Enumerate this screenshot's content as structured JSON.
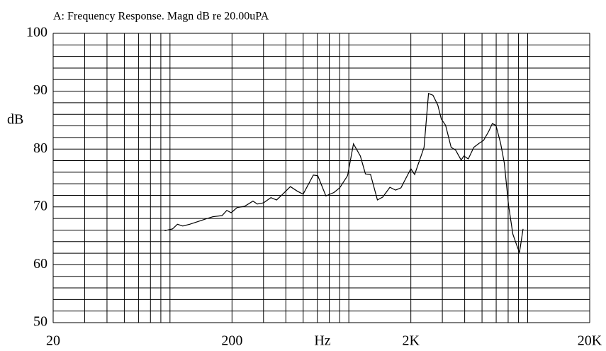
{
  "chart_data": {
    "type": "line",
    "title": "A: Frequency Response. Magn dB re 20.00uPA",
    "xlabel": "Hz",
    "ylabel": "dB",
    "xscale": "log",
    "grid": true,
    "color": "#000000",
    "xlim": [
      20,
      20000
    ],
    "xticks": [
      20,
      200,
      {
        "value": 2000,
        "label": "2K"
      },
      {
        "value": 20000,
        "label": "20K"
      }
    ],
    "ylim": [
      50,
      100
    ],
    "yticks": [
      50,
      60,
      70,
      80,
      90,
      100
    ],
    "series": [
      {
        "name": "Magnitude",
        "color": "#000000",
        "x": [
          84,
          93,
          99,
          106,
          116,
          130,
          142,
          156,
          176,
          187,
          198,
          214,
          235,
          262,
          277,
          300,
          330,
          355,
          381,
          424,
          465,
          500,
          570,
          603,
          670,
          744,
          800,
          886,
          955,
          1044,
          1115,
          1190,
          1300,
          1393,
          1527,
          1643,
          1760,
          2000,
          2100,
          2370,
          2510,
          2660,
          2830,
          2960,
          3130,
          3360,
          3560,
          3820,
          3960,
          4190,
          4500,
          4820,
          5100,
          5460,
          5710,
          5980,
          6350,
          6660,
          7040,
          7440,
          7790,
          8100,
          8480
        ],
        "values": [
          65.9,
          66.2,
          67.0,
          66.7,
          67.0,
          67.5,
          67.9,
          68.3,
          68.5,
          69.4,
          69.0,
          69.9,
          70.1,
          71.0,
          70.5,
          70.7,
          71.6,
          71.2,
          72.1,
          73.5,
          72.7,
          72.2,
          75.5,
          75.4,
          71.9,
          72.5,
          73.3,
          75.4,
          80.9,
          78.8,
          75.7,
          75.6,
          71.2,
          71.7,
          73.4,
          72.9,
          73.3,
          76.6,
          75.6,
          80.3,
          89.6,
          89.3,
          87.6,
          85.2,
          84.1,
          80.3,
          79.8,
          78.1,
          78.8,
          78.3,
          80.3,
          81.0,
          81.5,
          83.1,
          84.4,
          84.1,
          81.0,
          77.6,
          70.2,
          65.3,
          63.5,
          62.1,
          66.2
        ]
      }
    ]
  }
}
